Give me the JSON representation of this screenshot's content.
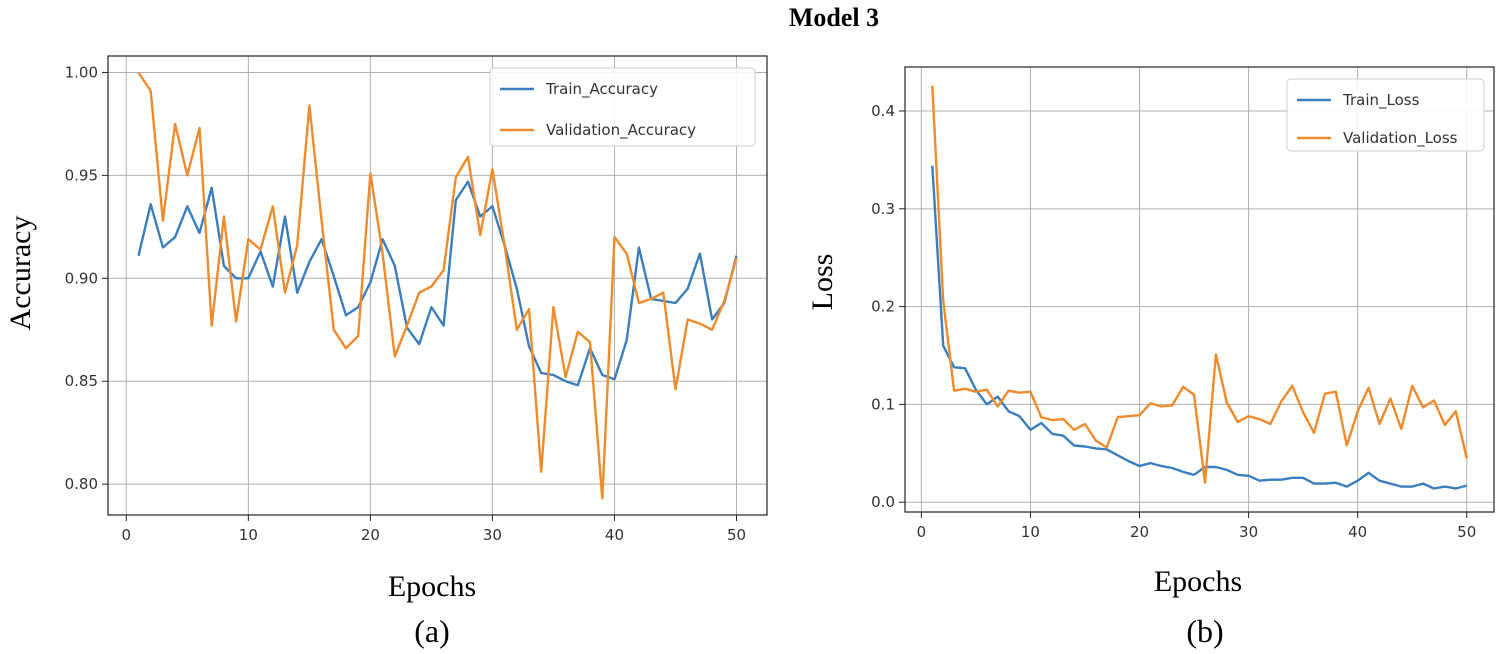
{
  "figure": {
    "title": "Model 3"
  },
  "colors": {
    "train": "#3a7ebf",
    "validation": "#ef8b2c",
    "grid": "#b0b0b0",
    "axis": "#222222"
  },
  "chart_data": [
    {
      "type": "line",
      "caption": "(a)",
      "title": "",
      "xlabel": "Epochs",
      "ylabel": "Accuracy",
      "xlim": [
        -1.5,
        52.5
      ],
      "ylim": [
        0.785,
        1.008
      ],
      "xticks": [
        0,
        10,
        20,
        30,
        40,
        50
      ],
      "yticks": [
        0.8,
        0.85,
        0.9,
        0.95,
        1.0
      ],
      "ytick_labels": [
        "0.80",
        "0.85",
        "0.90",
        "0.95",
        "1.00"
      ],
      "grid": true,
      "legend_position": "top-right",
      "x": [
        1,
        2,
        3,
        4,
        5,
        6,
        7,
        8,
        9,
        10,
        11,
        12,
        13,
        14,
        15,
        16,
        17,
        18,
        19,
        20,
        21,
        22,
        23,
        24,
        25,
        26,
        27,
        28,
        29,
        30,
        31,
        32,
        33,
        34,
        35,
        36,
        37,
        38,
        39,
        40,
        41,
        42,
        43,
        44,
        45,
        46,
        47,
        48,
        49,
        50
      ],
      "series": [
        {
          "name": "Train_Accuracy",
          "values": [
            0.911,
            0.936,
            0.915,
            0.92,
            0.935,
            0.922,
            0.944,
            0.906,
            0.9,
            0.9,
            0.913,
            0.896,
            0.93,
            0.893,
            0.908,
            0.919,
            0.901,
            0.882,
            0.886,
            0.898,
            0.919,
            0.906,
            0.876,
            0.868,
            0.886,
            0.877,
            0.938,
            0.947,
            0.93,
            0.935,
            0.916,
            0.895,
            0.867,
            0.854,
            0.853,
            0.85,
            0.848,
            0.866,
            0.853,
            0.851,
            0.87,
            0.915,
            0.89,
            0.889,
            0.888,
            0.895,
            0.912,
            0.88,
            0.888,
            0.911
          ]
        },
        {
          "name": "Validation_Accuracy",
          "values": [
            1.0,
            0.991,
            0.928,
            0.975,
            0.95,
            0.973,
            0.877,
            0.93,
            0.879,
            0.919,
            0.914,
            0.935,
            0.893,
            0.916,
            0.984,
            0.928,
            0.875,
            0.866,
            0.872,
            0.951,
            0.912,
            0.862,
            0.877,
            0.893,
            0.896,
            0.904,
            0.949,
            0.959,
            0.921,
            0.953,
            0.916,
            0.875,
            0.885,
            0.806,
            0.886,
            0.852,
            0.874,
            0.869,
            0.793,
            0.92,
            0.912,
            0.888,
            0.89,
            0.893,
            0.846,
            0.88,
            0.878,
            0.875,
            0.889,
            0.91
          ]
        }
      ]
    },
    {
      "type": "line",
      "caption": "(b)",
      "title": "",
      "xlabel": "Epochs",
      "ylabel": "Loss",
      "xlim": [
        -1.5,
        52.5
      ],
      "ylim": [
        -0.01,
        0.445
      ],
      "xticks": [
        0,
        10,
        20,
        30,
        40,
        50
      ],
      "yticks": [
        0.0,
        0.1,
        0.2,
        0.3,
        0.4
      ],
      "ytick_labels": [
        "0.0",
        "0.1",
        "0.2",
        "0.3",
        "0.4"
      ],
      "grid": true,
      "legend_position": "top-right",
      "x": [
        1,
        2,
        3,
        4,
        5,
        6,
        7,
        8,
        9,
        10,
        11,
        12,
        13,
        14,
        15,
        16,
        17,
        18,
        19,
        20,
        21,
        22,
        23,
        24,
        25,
        26,
        27,
        28,
        29,
        30,
        31,
        32,
        33,
        34,
        35,
        36,
        37,
        38,
        39,
        40,
        41,
        42,
        43,
        44,
        45,
        46,
        47,
        48,
        49,
        50
      ],
      "series": [
        {
          "name": "Train_Loss",
          "values": [
            0.344,
            0.16,
            0.138,
            0.137,
            0.115,
            0.1,
            0.108,
            0.093,
            0.088,
            0.074,
            0.081,
            0.07,
            0.068,
            0.058,
            0.057,
            0.055,
            0.054,
            0.048,
            0.042,
            0.037,
            0.04,
            0.037,
            0.035,
            0.031,
            0.028,
            0.036,
            0.036,
            0.033,
            0.028,
            0.027,
            0.022,
            0.023,
            0.023,
            0.025,
            0.025,
            0.019,
            0.019,
            0.02,
            0.016,
            0.022,
            0.03,
            0.022,
            0.019,
            0.016,
            0.016,
            0.019,
            0.014,
            0.016,
            0.014,
            0.017
          ]
        },
        {
          "name": "Validation_Loss",
          "values": [
            0.426,
            0.206,
            0.114,
            0.116,
            0.113,
            0.115,
            0.098,
            0.114,
            0.112,
            0.113,
            0.087,
            0.084,
            0.085,
            0.074,
            0.08,
            0.063,
            0.056,
            0.087,
            0.088,
            0.089,
            0.101,
            0.098,
            0.099,
            0.118,
            0.11,
            0.02,
            0.151,
            0.102,
            0.082,
            0.088,
            0.085,
            0.08,
            0.103,
            0.119,
            0.092,
            0.071,
            0.111,
            0.113,
            0.058,
            0.093,
            0.117,
            0.08,
            0.106,
            0.075,
            0.119,
            0.097,
            0.104,
            0.079,
            0.093,
            0.045
          ]
        }
      ]
    }
  ]
}
